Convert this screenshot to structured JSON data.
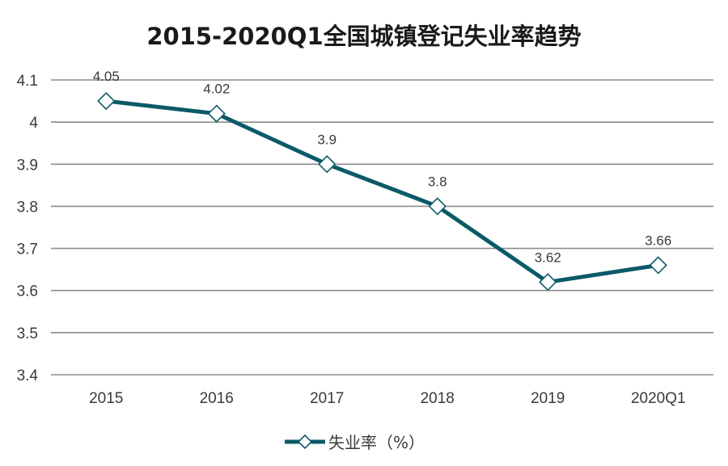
{
  "chart_data": {
    "type": "line",
    "title": "2015-2020Q1全国城镇登记失业率趋势",
    "categories": [
      "2015",
      "2016",
      "2017",
      "2018",
      "2019",
      "2020Q1"
    ],
    "series": [
      {
        "name": "失业率（%）",
        "values": [
          4.05,
          4.02,
          3.9,
          3.8,
          3.62,
          3.66
        ],
        "labels": [
          "4.05",
          "4.02",
          "3.9",
          "3.8",
          "3.62",
          "3.66"
        ],
        "color": "#0b5a68",
        "marker": "diamond-open"
      }
    ],
    "yticks": [
      "3.4",
      "3.5",
      "3.6",
      "3.7",
      "3.8",
      "3.9",
      "4",
      "4.1"
    ],
    "ylim": [
      3.4,
      4.1
    ],
    "xlabel": "",
    "ylabel": "",
    "grid": true,
    "legend_position": "bottom-center"
  }
}
